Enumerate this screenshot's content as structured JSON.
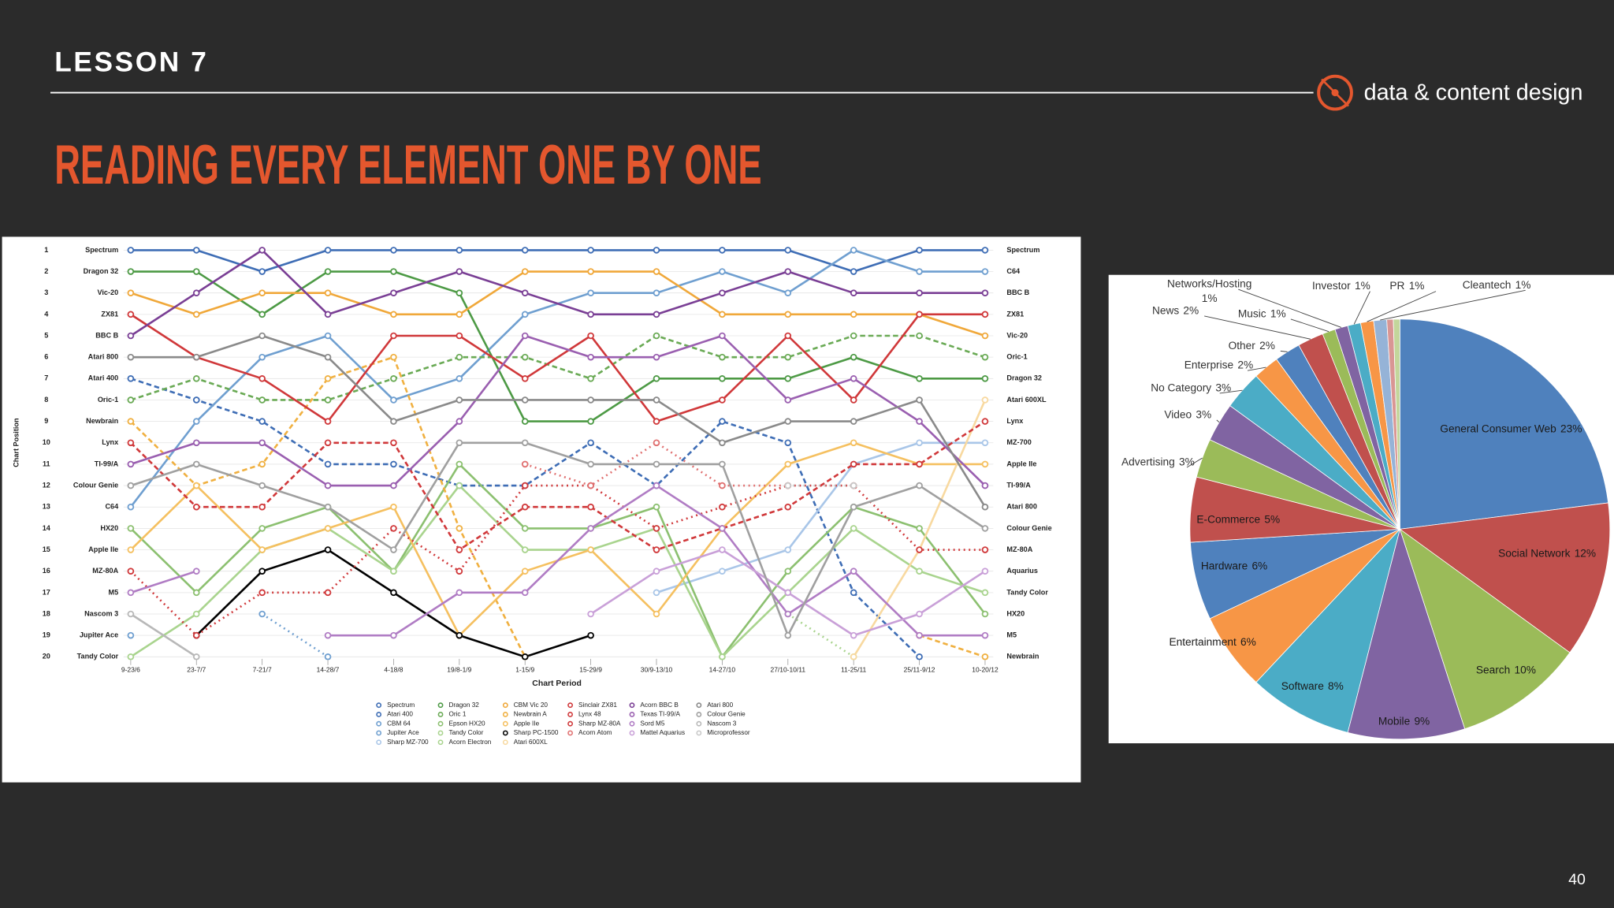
{
  "slide": {
    "lesson": "LESSON 7",
    "brand": "data & content design",
    "title": "READING EVERY ELEMENT ONE BY ONE",
    "page_number": "40"
  },
  "chart_data": [
    {
      "type": "line",
      "y_label": "Chart Position",
      "x_label": "Chart Period",
      "categories": [
        "9-23/6",
        "23-7/7",
        "7-21/7",
        "14-28/7",
        "4-18/8",
        "19/8-1/9",
        "1-15/9",
        "15-29/9",
        "30/9-13/10",
        "14-27/10",
        "27/10-10/11",
        "11-25/11",
        "25/11-9/12",
        "10-20/12"
      ],
      "ylim": [
        1,
        20
      ],
      "yticks": [
        1,
        2,
        3,
        4,
        5,
        6,
        7,
        8,
        9,
        10,
        11,
        12,
        13,
        14,
        15,
        16,
        17,
        18,
        19,
        20
      ],
      "y_inverted": true,
      "grid": true,
      "left_labels": [
        "Spectrum",
        "Dragon 32",
        "Vic-20",
        "ZX81",
        "BBC B",
        "Atari 800",
        "Atari 400",
        "Oric-1",
        "Newbrain",
        "Lynx",
        "TI-99/A",
        "Colour Genie",
        "C64",
        "HX20",
        "Apple IIe",
        "MZ-80A",
        "M5",
        "Nascom 3",
        "Jupiter Ace",
        "Tandy Color"
      ],
      "right_labels": [
        "Spectrum",
        "C64",
        "BBC B",
        "ZX81",
        "Vic-20",
        "Oric-1",
        "Dragon 32",
        "Atari 600XL",
        "Lynx",
        "MZ-700",
        "Apple IIe",
        "TI-99/A",
        "Atari 800",
        "Colour Genie",
        "MZ-80A",
        "Aquarius",
        "Tandy Color",
        "HX20",
        "M5",
        "Newbrain"
      ],
      "legend_columns": [
        5,
        5,
        5,
        4,
        4,
        4
      ],
      "series": [
        {
          "name": "Spectrum",
          "color": "#3e6db5",
          "dash": "solid",
          "values": [
            1,
            1,
            2,
            1,
            1,
            1,
            1,
            1,
            1,
            1,
            1,
            2,
            1,
            1
          ]
        },
        {
          "name": "Atari 400",
          "color": "#3e6db5",
          "dash": "dashed",
          "values": [
            7,
            8,
            9,
            11,
            11,
            12,
            12,
            10,
            12,
            9,
            10,
            17,
            20,
            null
          ]
        },
        {
          "name": "CBM 64",
          "color": "#6f9fd0",
          "dash": "solid",
          "values": [
            13,
            9,
            6,
            5,
            8,
            7,
            4,
            3,
            3,
            2,
            3,
            1,
            2,
            2
          ]
        },
        {
          "name": "Jupiter Ace",
          "color": "#6f9fd0",
          "dash": "dotted",
          "values": [
            19,
            null,
            18,
            20,
            null,
            null,
            null,
            null,
            null,
            null,
            null,
            null,
            null,
            null
          ]
        },
        {
          "name": "Sharp MZ-700",
          "color": "#a9c6e8",
          "dash": "solid",
          "values": [
            null,
            null,
            null,
            null,
            null,
            null,
            null,
            null,
            17,
            16,
            15,
            11,
            10,
            10
          ]
        },
        {
          "name": "Dragon 32",
          "color": "#4d9a45",
          "dash": "solid",
          "values": [
            2,
            2,
            4,
            2,
            2,
            3,
            9,
            9,
            7,
            7,
            7,
            6,
            7,
            7
          ]
        },
        {
          "name": "Oric 1",
          "color": "#6aaa55",
          "dash": "dashed",
          "values": [
            8,
            7,
            8,
            8,
            7,
            6,
            6,
            7,
            5,
            6,
            6,
            5,
            5,
            6
          ]
        },
        {
          "name": "Epson HX20",
          "color": "#8cc070",
          "dash": "solid",
          "values": [
            14,
            17,
            14,
            13,
            16,
            11,
            14,
            14,
            13,
            20,
            16,
            13,
            14,
            18
          ]
        },
        {
          "name": "Tandy Color",
          "color": "#a9d48e",
          "dash": "solid",
          "values": [
            20,
            18,
            15,
            14,
            16,
            12,
            15,
            15,
            14,
            20,
            17,
            14,
            16,
            17
          ]
        },
        {
          "name": "Acorn Electron",
          "color": "#a9d48e",
          "dash": "dotted",
          "values": [
            null,
            null,
            null,
            null,
            null,
            null,
            null,
            null,
            null,
            null,
            18,
            20,
            null,
            null
          ]
        },
        {
          "name": "CBM Vic 20",
          "color": "#f0a83a",
          "dash": "solid",
          "values": [
            3,
            4,
            3,
            3,
            4,
            4,
            2,
            2,
            2,
            4,
            4,
            4,
            4,
            5
          ]
        },
        {
          "name": "Newbrain A",
          "color": "#f0b040",
          "dash": "dashed",
          "values": [
            9,
            12,
            11,
            7,
            6,
            14,
            20,
            null,
            null,
            null,
            null,
            null,
            19,
            20
          ]
        },
        {
          "name": "Apple IIe",
          "color": "#f5c060",
          "dash": "solid",
          "values": [
            15,
            12,
            15,
            14,
            13,
            19,
            16,
            15,
            18,
            14,
            11,
            10,
            11,
            11
          ]
        },
        {
          "name": "Sharp PC-1500",
          "color": "#000000",
          "dash": "solid",
          "values": [
            null,
            19,
            16,
            15,
            17,
            19,
            20,
            19,
            null,
            null,
            null,
            null,
            null,
            null
          ]
        },
        {
          "name": "Atari 600XL",
          "color": "#f8d9a0",
          "dash": "solid",
          "values": [
            null,
            null,
            null,
            null,
            null,
            null,
            null,
            null,
            null,
            null,
            null,
            20,
            15,
            8
          ]
        },
        {
          "name": "Sinclair ZX81",
          "color": "#d0383a",
          "dash": "solid",
          "values": [
            4,
            6,
            7,
            9,
            5,
            5,
            7,
            5,
            9,
            8,
            5,
            8,
            4,
            4
          ]
        },
        {
          "name": "Lynx 48",
          "color": "#d0383a",
          "dash": "dashed",
          "values": [
            10,
            13,
            13,
            10,
            10,
            15,
            13,
            13,
            15,
            14,
            13,
            11,
            11,
            9
          ]
        },
        {
          "name": "Sharp MZ-80A",
          "color": "#d0383a",
          "dash": "dotted",
          "values": [
            16,
            19,
            17,
            17,
            14,
            16,
            12,
            12,
            14,
            13,
            12,
            12,
            15,
            15
          ]
        },
        {
          "name": "Acorn Atom",
          "color": "#e07070",
          "dash": "dotted",
          "values": [
            null,
            null,
            null,
            null,
            null,
            null,
            11,
            12,
            10,
            12,
            12,
            null,
            null,
            null
          ]
        },
        {
          "name": "Acorn BBC B",
          "color": "#7a3f95",
          "dash": "solid",
          "values": [
            5,
            3,
            1,
            4,
            3,
            2,
            3,
            4,
            4,
            3,
            2,
            3,
            3,
            3
          ]
        },
        {
          "name": "Texas TI-99/A",
          "color": "#9a5fb0",
          "dash": "solid",
          "values": [
            11,
            10,
            10,
            12,
            12,
            9,
            5,
            6,
            6,
            5,
            8,
            7,
            9,
            12
          ]
        },
        {
          "name": "Sord M5",
          "color": "#b07cc4",
          "dash": "solid",
          "values": [
            17,
            16,
            null,
            19,
            19,
            17,
            17,
            14,
            12,
            14,
            18,
            16,
            19,
            19
          ]
        },
        {
          "name": "Mattel Aquarius",
          "color": "#c9a0d8",
          "dash": "solid",
          "values": [
            null,
            null,
            null,
            null,
            null,
            null,
            null,
            18,
            16,
            15,
            17,
            19,
            18,
            16
          ]
        },
        {
          "name": "Atari 800",
          "color": "#8a8a8a",
          "dash": "solid",
          "values": [
            6,
            6,
            5,
            6,
            9,
            8,
            8,
            8,
            8,
            10,
            9,
            9,
            8,
            13
          ]
        },
        {
          "name": "Colour Genie",
          "color": "#a0a0a0",
          "dash": "solid",
          "values": [
            12,
            11,
            12,
            13,
            15,
            10,
            10,
            11,
            11,
            11,
            19,
            13,
            12,
            14
          ]
        },
        {
          "name": "Nascom 3",
          "color": "#b8b8b8",
          "dash": "solid",
          "values": [
            18,
            20,
            null,
            null,
            null,
            null,
            null,
            null,
            null,
            null,
            null,
            null,
            null,
            null
          ]
        },
        {
          "name": "Microprofessor",
          "color": "#c8c8c8",
          "dash": "dotted",
          "values": [
            null,
            null,
            null,
            null,
            null,
            null,
            null,
            null,
            null,
            null,
            12,
            12,
            null,
            null
          ]
        }
      ]
    },
    {
      "type": "pie",
      "categories": [
        "General Consumer Web",
        "Social Network",
        "Search",
        "Mobile",
        "Software",
        "Entertainment",
        "Hardware",
        "E-Commerce",
        "Advertising",
        "Video",
        "No Category",
        "Enterprise",
        "Other",
        "News",
        "Music",
        "Networks/Hosting",
        "Investor",
        "PR",
        "Cleantech",
        null,
        null
      ],
      "values": [
        23,
        12,
        10,
        9,
        8,
        6,
        6,
        5,
        3,
        3,
        3,
        2,
        2,
        2,
        1,
        1,
        1,
        1,
        1,
        0.5,
        0.5
      ],
      "value_labels": [
        "23%",
        "12%",
        "10%",
        "9%",
        "8%",
        "6%",
        "6%",
        "5%",
        "3%",
        "3%",
        "3%",
        "2%",
        "2%",
        "2%",
        "1%",
        "1%",
        "1%",
        "1%",
        "1%",
        null,
        null
      ],
      "colors": [
        "#4f81bd",
        "#c0504d",
        "#9bbb59",
        "#8064a2",
        "#4bacc6",
        "#f79646",
        "#4f81bd",
        "#c0504d",
        "#9bbb59",
        "#8064a2",
        "#4bacc6",
        "#f79646",
        "#4f81bd",
        "#c0504d",
        "#9bbb59",
        "#8064a2",
        "#4bacc6",
        "#f79646",
        "#95b3d7",
        "#d99694",
        "#c3d69b"
      ]
    }
  ]
}
